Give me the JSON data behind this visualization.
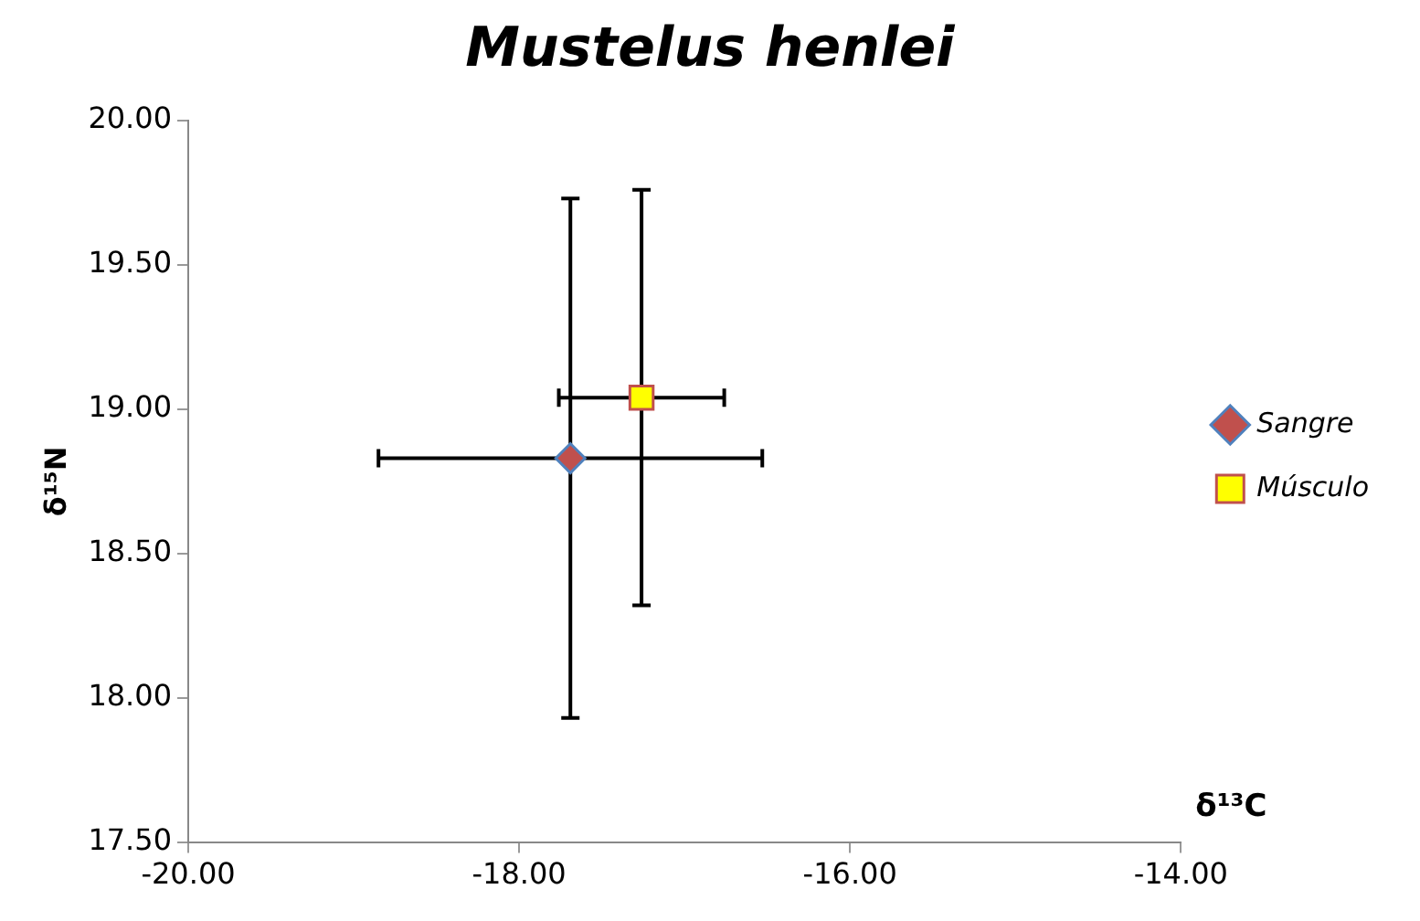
{
  "chart_data": {
    "type": "scatter",
    "title": "Mustelus henlei",
    "xlabel": "δ¹³C",
    "ylabel": "δ¹⁵N",
    "xlim": [
      -20,
      -14
    ],
    "xticks": [
      {
        "value": -20,
        "label": "-20.00"
      },
      {
        "value": -18,
        "label": "-18.00"
      },
      {
        "value": -16,
        "label": "-16.00"
      },
      {
        "value": -14,
        "label": "-14.00"
      }
    ],
    "ylim": [
      17.5,
      20
    ],
    "yticks": [
      {
        "value": 17.5,
        "label": "17.50"
      },
      {
        "value": 18,
        "label": "18.00"
      },
      {
        "value": 18.5,
        "label": "18.50"
      },
      {
        "value": 19,
        "label": "19.00"
      },
      {
        "value": 19.5,
        "label": "19.50"
      },
      {
        "value": 20,
        "label": "20.00"
      }
    ],
    "grid": false,
    "legend": "right",
    "series": [
      {
        "name": "Sangre",
        "color": "#c0504d",
        "marker": "diamond",
        "x": [
          -17.69
        ],
        "values": [
          18.83
        ],
        "errors": [
          0.9
        ],
        "xerrors": [
          1.16
        ]
      },
      {
        "name": "Músculo",
        "color": "#ffff00",
        "marker": "square",
        "x": [
          -17.26
        ],
        "values": [
          19.04
        ],
        "errors": [
          0.72
        ],
        "xerrors": [
          0.5
        ]
      }
    ]
  }
}
